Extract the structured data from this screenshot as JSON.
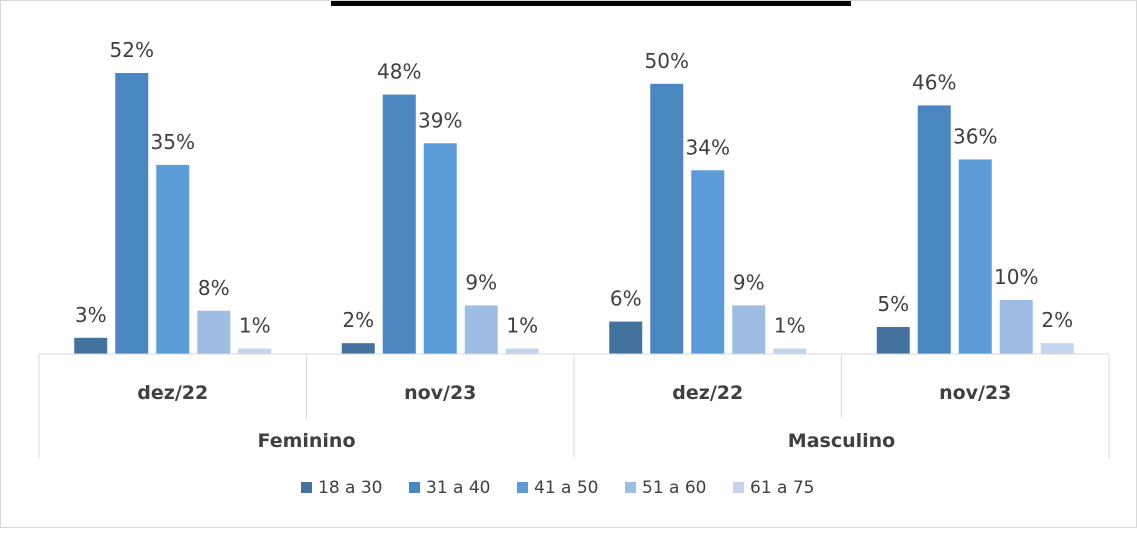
{
  "chart_data": {
    "type": "bar",
    "groups": [
      {
        "name": "Feminino",
        "categories": [
          "dez/22",
          "nov/23"
        ]
      },
      {
        "name": "Masculino",
        "categories": [
          "dez/22",
          "nov/23"
        ]
      }
    ],
    "categories": [
      "dez/22",
      "nov/23",
      "dez/22",
      "nov/23"
    ],
    "series": [
      {
        "name": "18 a 30",
        "color": "#44729e",
        "values": [
          3,
          2,
          6,
          5
        ],
        "labels": [
          "3%",
          "2%",
          "6%",
          "5%"
        ]
      },
      {
        "name": "31 a 40",
        "color": "#4a86bf",
        "values": [
          52,
          48,
          50,
          46
        ],
        "labels": [
          "52%",
          "48%",
          "50%",
          "46%"
        ]
      },
      {
        "name": "41 a 50",
        "color": "#5b9bd8",
        "values": [
          35,
          39,
          34,
          36
        ],
        "labels": [
          "35%",
          "39%",
          "34%",
          "36%"
        ]
      },
      {
        "name": "51 a 60",
        "color": "#9dbde3",
        "values": [
          8,
          9,
          9,
          10
        ],
        "labels": [
          "8%",
          "9%",
          "9%",
          "10%"
        ]
      },
      {
        "name": "61 a 75",
        "color": "#c3d5ee",
        "values": [
          1,
          1,
          1,
          2
        ],
        "labels": [
          "1%",
          "1%",
          "1%",
          "2%"
        ]
      }
    ],
    "ylim": [
      0,
      52
    ],
    "grid": false,
    "legend": "bottom"
  }
}
